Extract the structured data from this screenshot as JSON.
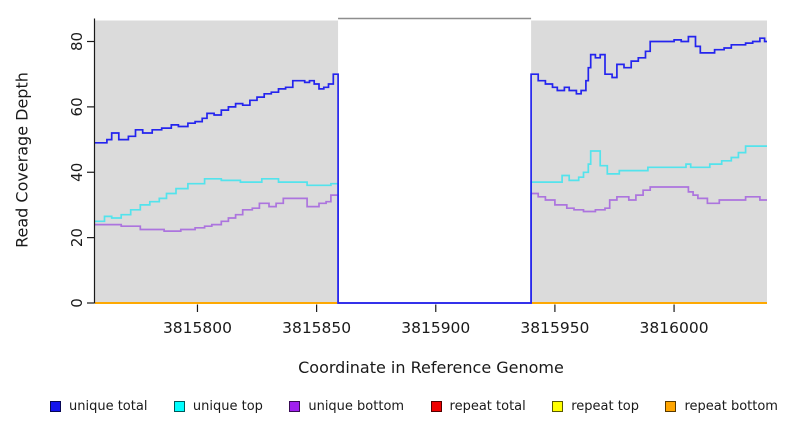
{
  "chart_data": {
    "type": "line",
    "interpolation": "step-after",
    "title": "",
    "xlabel": "Coordinate in Reference Genome",
    "ylabel": "Read Coverage Depth",
    "xlim": [
      3815757,
      3816039
    ],
    "ylim": [
      0,
      86
    ],
    "x_ticks": [
      3815800,
      3815850,
      3815900,
      3815950,
      3816000
    ],
    "y_ticks": [
      0,
      20,
      40,
      60,
      80
    ],
    "grid": false,
    "legend_position": "bottom",
    "panel_bg": "#dbdbdb",
    "gap_region": {
      "start": 3815859,
      "end": 3815940,
      "fill": "#ffffff",
      "top_border": "#8e8e8e"
    },
    "axis_color": "#1a1a1a",
    "series": [
      {
        "name": "unique-total",
        "label": "unique total",
        "color": "#2424ee",
        "legend_fill": "#1414ee",
        "over_gap": true,
        "z": 6,
        "points": [
          [
            3815757,
            49
          ],
          [
            3815762,
            50
          ],
          [
            3815764,
            52
          ],
          [
            3815767,
            50
          ],
          [
            3815771,
            51
          ],
          [
            3815774,
            53
          ],
          [
            3815777,
            52
          ],
          [
            3815781,
            53
          ],
          [
            3815785,
            53.5
          ],
          [
            3815789,
            54.5
          ],
          [
            3815792,
            54
          ],
          [
            3815796,
            55
          ],
          [
            3815799,
            55.5
          ],
          [
            3815802,
            56.5
          ],
          [
            3815804,
            58
          ],
          [
            3815807,
            57.5
          ],
          [
            3815810,
            59
          ],
          [
            3815813,
            60
          ],
          [
            3815816,
            61
          ],
          [
            3815819,
            60.5
          ],
          [
            3815822,
            62
          ],
          [
            3815825,
            63
          ],
          [
            3815828,
            64
          ],
          [
            3815831,
            64.5
          ],
          [
            3815834,
            65.5
          ],
          [
            3815837,
            66
          ],
          [
            3815840,
            68
          ],
          [
            3815845,
            67.5
          ],
          [
            3815847,
            68
          ],
          [
            3815849,
            67
          ],
          [
            3815851,
            65.5
          ],
          [
            3815853,
            66
          ],
          [
            3815855,
            67
          ],
          [
            3815857,
            70
          ],
          [
            3815859,
            0
          ],
          [
            3815940,
            70
          ],
          [
            3815943,
            68
          ],
          [
            3815946,
            67
          ],
          [
            3815949,
            66
          ],
          [
            3815951,
            65
          ],
          [
            3815954,
            66
          ],
          [
            3815956,
            65
          ],
          [
            3815959,
            64
          ],
          [
            3815961,
            65
          ],
          [
            3815963,
            68
          ],
          [
            3815964,
            72
          ],
          [
            3815965,
            76
          ],
          [
            3815967,
            75
          ],
          [
            3815969,
            76
          ],
          [
            3815971,
            70
          ],
          [
            3815974,
            69
          ],
          [
            3815976,
            73
          ],
          [
            3815979,
            72
          ],
          [
            3815982,
            74
          ],
          [
            3815985,
            75
          ],
          [
            3815988,
            77
          ],
          [
            3815990,
            80
          ],
          [
            3816000,
            80.5
          ],
          [
            3816003,
            80
          ],
          [
            3816006,
            81.5
          ],
          [
            3816009,
            78.5
          ],
          [
            3816011,
            76.5
          ],
          [
            3816017,
            77.5
          ],
          [
            3816021,
            78
          ],
          [
            3816024,
            79
          ],
          [
            3816030,
            79.5
          ],
          [
            3816033,
            80
          ],
          [
            3816036,
            81
          ],
          [
            3816038,
            80
          ]
        ]
      },
      {
        "name": "unique-top",
        "label": "unique top",
        "color": "#53e3ec",
        "legend_fill": "#00ffff",
        "over_gap": true,
        "z": 4,
        "points": [
          [
            3815757,
            25
          ],
          [
            3815761,
            26.5
          ],
          [
            3815764,
            26
          ],
          [
            3815768,
            27
          ],
          [
            3815772,
            28.5
          ],
          [
            3815776,
            30
          ],
          [
            3815780,
            31
          ],
          [
            3815784,
            32
          ],
          [
            3815787,
            33.5
          ],
          [
            3815791,
            35
          ],
          [
            3815796,
            36.5
          ],
          [
            3815803,
            38
          ],
          [
            3815810,
            37.5
          ],
          [
            3815818,
            37
          ],
          [
            3815827,
            38
          ],
          [
            3815834,
            37
          ],
          [
            3815846,
            36
          ],
          [
            3815856,
            36.5
          ],
          [
            3815859,
            0
          ],
          [
            3815940,
            37
          ],
          [
            3815953,
            39
          ],
          [
            3815956,
            37.5
          ],
          [
            3815960,
            38.5
          ],
          [
            3815962,
            40
          ],
          [
            3815964,
            42.5
          ],
          [
            3815965,
            46.5
          ],
          [
            3815969,
            42
          ],
          [
            3815972,
            39.5
          ],
          [
            3815977,
            40.5
          ],
          [
            3815989,
            41.5
          ],
          [
            3816005,
            42.5
          ],
          [
            3816007,
            41.5
          ],
          [
            3816015,
            42.5
          ],
          [
            3816020,
            43.5
          ],
          [
            3816024,
            44.5
          ],
          [
            3816027,
            46
          ],
          [
            3816030,
            48
          ]
        ]
      },
      {
        "name": "unique-bottom",
        "label": "unique bottom",
        "color": "#ac74de",
        "legend_fill": "#a020f0",
        "over_gap": true,
        "z": 5,
        "points": [
          [
            3815757,
            24
          ],
          [
            3815768,
            23.5
          ],
          [
            3815776,
            22.5
          ],
          [
            3815786,
            22
          ],
          [
            3815793,
            22.5
          ],
          [
            3815799,
            23
          ],
          [
            3815803,
            23.5
          ],
          [
            3815806,
            24
          ],
          [
            3815810,
            25
          ],
          [
            3815813,
            26
          ],
          [
            3815816,
            27
          ],
          [
            3815819,
            28.5
          ],
          [
            3815823,
            29
          ],
          [
            3815826,
            30.5
          ],
          [
            3815830,
            29.5
          ],
          [
            3815833,
            30.5
          ],
          [
            3815836,
            32
          ],
          [
            3815846,
            29.5
          ],
          [
            3815851,
            30.5
          ],
          [
            3815854,
            31
          ],
          [
            3815856,
            33
          ],
          [
            3815859,
            0
          ],
          [
            3815940,
            33.5
          ],
          [
            3815943,
            32.5
          ],
          [
            3815946,
            31.5
          ],
          [
            3815950,
            30
          ],
          [
            3815955,
            29
          ],
          [
            3815958,
            28.5
          ],
          [
            3815962,
            28
          ],
          [
            3815967,
            28.5
          ],
          [
            3815971,
            29
          ],
          [
            3815973,
            31.5
          ],
          [
            3815976,
            32.5
          ],
          [
            3815981,
            31.5
          ],
          [
            3815984,
            33
          ],
          [
            3815987,
            34.5
          ],
          [
            3815990,
            35.5
          ],
          [
            3816006,
            34
          ],
          [
            3816008,
            33
          ],
          [
            3816010,
            32
          ],
          [
            3816014,
            30.5
          ],
          [
            3816019,
            31.5
          ],
          [
            3816030,
            32.5
          ],
          [
            3816036,
            31.5
          ]
        ]
      },
      {
        "name": "repeat-total",
        "label": "repeat total",
        "color": "#dd0000",
        "legend_fill": "#ee0000",
        "over_gap": false,
        "z": 1,
        "points": [
          [
            3815757,
            0
          ],
          [
            3816039,
            0
          ]
        ]
      },
      {
        "name": "repeat-top",
        "label": "repeat top",
        "color": "#f5f500",
        "legend_fill": "#ffff00",
        "over_gap": false,
        "z": 2,
        "points": [
          [
            3815757,
            0
          ],
          [
            3816039,
            0
          ]
        ]
      },
      {
        "name": "repeat-bottom",
        "label": "repeat bottom",
        "color": "#ffa500",
        "legend_fill": "#ffa500",
        "over_gap": false,
        "z": 3,
        "points": [
          [
            3815757,
            0
          ],
          [
            3816039,
            0
          ]
        ]
      }
    ]
  }
}
